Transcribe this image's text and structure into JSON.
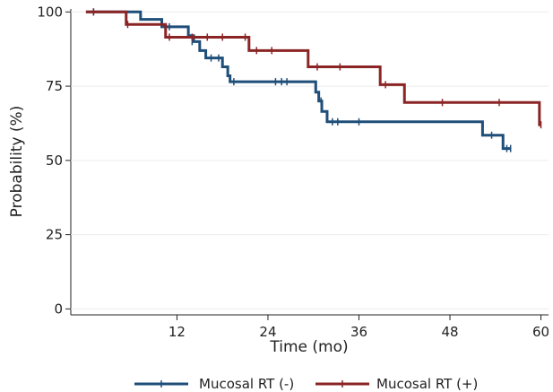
{
  "chart_data": {
    "type": "line",
    "subtype": "kaplan-meier-step",
    "xlabel": "Time (mo)",
    "ylabel": "Probability (%)",
    "xlim": [
      -2,
      61
    ],
    "ylim": [
      -2,
      101
    ],
    "xticks": [
      12,
      24,
      36,
      48,
      60
    ],
    "yticks": [
      0,
      25,
      50,
      75,
      100
    ],
    "xtick_labels": [
      "12",
      "24",
      "36",
      "48",
      "60"
    ],
    "ytick_labels": [
      "0",
      "25",
      "50",
      "75",
      "100"
    ],
    "grid": "horizontal",
    "legend_position": "bottom",
    "series": [
      {
        "name": "Mucosal RT (-)",
        "color": "#1f4e79",
        "steps": [
          [
            0,
            100
          ],
          [
            7.2,
            97.5
          ],
          [
            10,
            95
          ],
          [
            13.5,
            92
          ],
          [
            14.2,
            90
          ],
          [
            15,
            87
          ],
          [
            15.8,
            84.5
          ],
          [
            18,
            81.5
          ],
          [
            18.7,
            78.5
          ],
          [
            19,
            76.5
          ],
          [
            30.3,
            73
          ],
          [
            30.7,
            70
          ],
          [
            31.1,
            66.5
          ],
          [
            31.8,
            63
          ],
          [
            52.3,
            58.5
          ],
          [
            55,
            54
          ],
          [
            56,
            54
          ]
        ],
        "censors": [
          [
            1,
            100
          ],
          [
            11,
            95
          ],
          [
            14,
            90
          ],
          [
            16.5,
            84.5
          ],
          [
            17.5,
            84.5
          ],
          [
            19.5,
            76.5
          ],
          [
            25,
            76.5
          ],
          [
            25.8,
            76.5
          ],
          [
            26.5,
            76.5
          ],
          [
            31,
            70
          ],
          [
            32.5,
            63
          ],
          [
            33.2,
            63
          ],
          [
            36,
            63
          ],
          [
            53.5,
            58.5
          ],
          [
            55.5,
            54
          ],
          [
            56,
            54
          ]
        ]
      },
      {
        "name": "Mucosal RT (+)",
        "color": "#8b2525",
        "steps": [
          [
            0,
            100
          ],
          [
            5.3,
            95.8
          ],
          [
            10.5,
            91.5
          ],
          [
            21.5,
            87
          ],
          [
            29.3,
            81.5
          ],
          [
            38.8,
            75.5
          ],
          [
            42,
            69.5
          ],
          [
            59.8,
            62
          ],
          [
            60,
            62
          ]
        ],
        "censors": [
          [
            1,
            100
          ],
          [
            5.5,
            95.8
          ],
          [
            11,
            91.5
          ],
          [
            14,
            91.5
          ],
          [
            16,
            91.5
          ],
          [
            18,
            91.5
          ],
          [
            21,
            91.5
          ],
          [
            22.5,
            87
          ],
          [
            24.5,
            87
          ],
          [
            30.5,
            81.5
          ],
          [
            33.5,
            81.5
          ],
          [
            39.5,
            75.5
          ],
          [
            47,
            69.5
          ],
          [
            54.5,
            69.5
          ],
          [
            60,
            62
          ]
        ]
      }
    ]
  }
}
